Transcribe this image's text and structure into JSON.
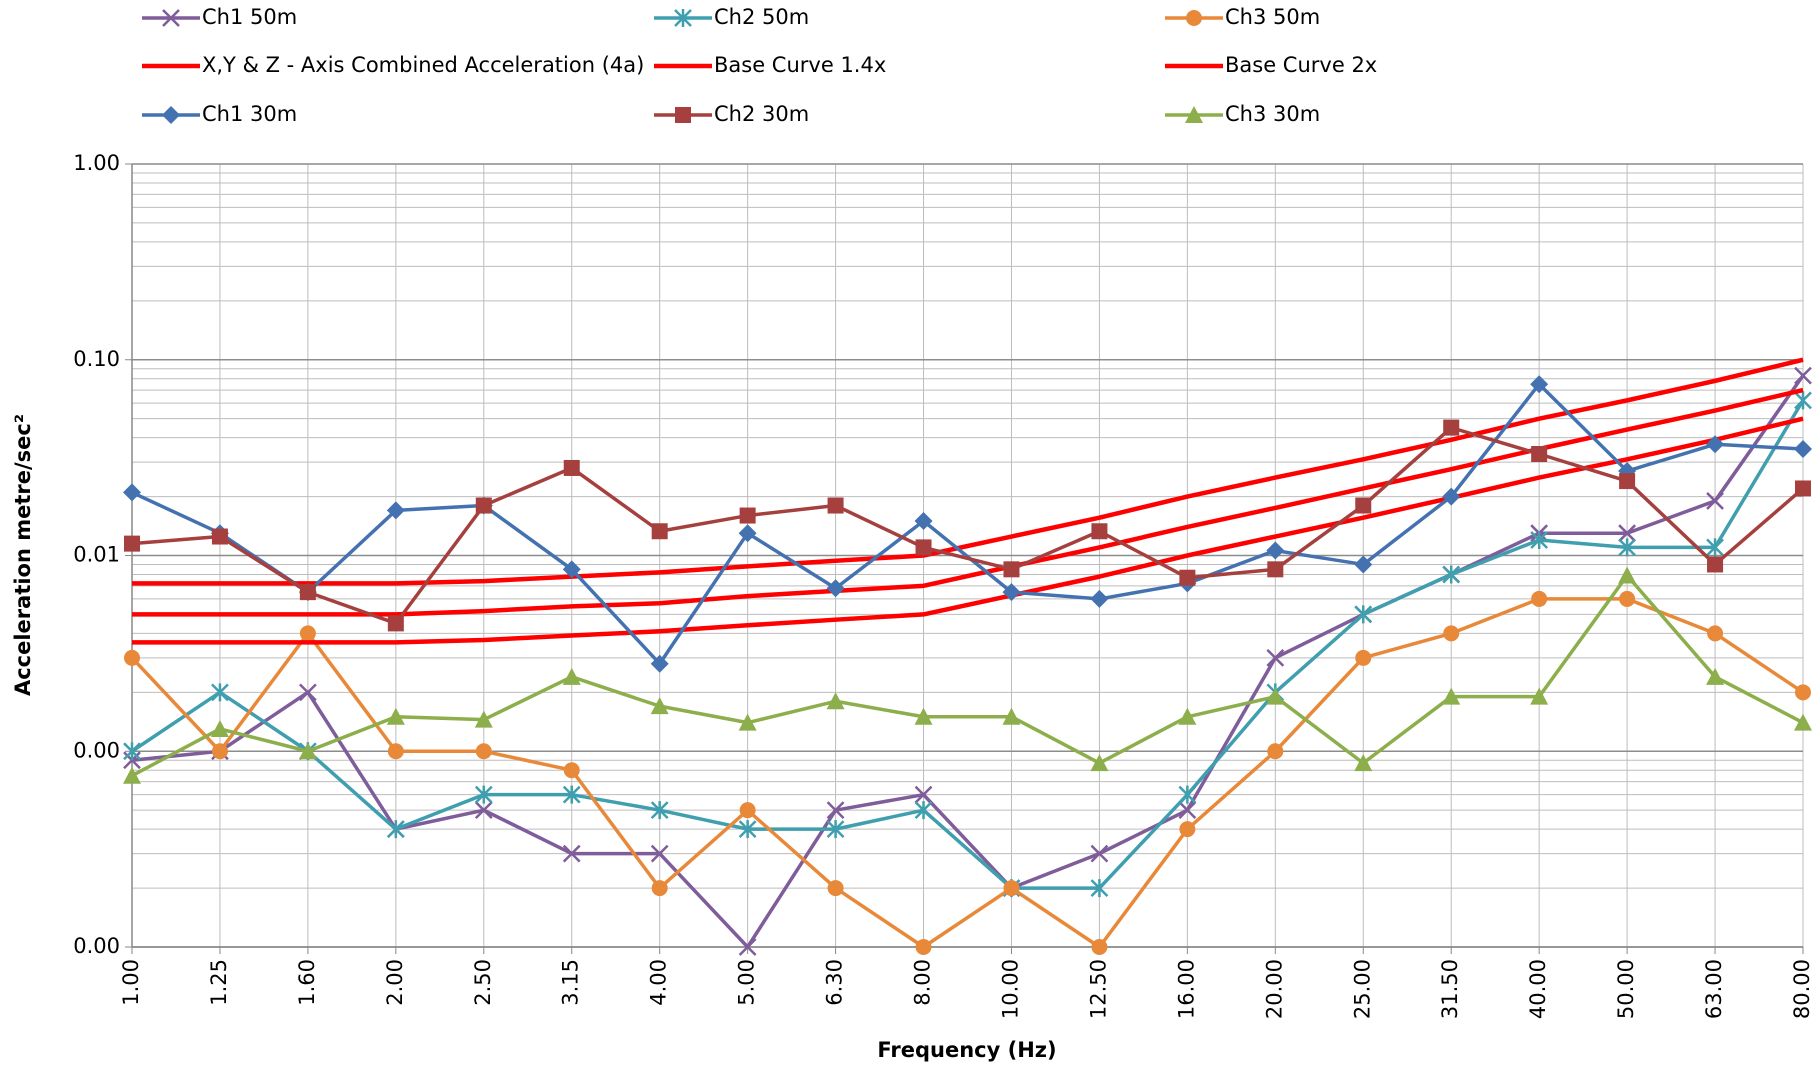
{
  "chart_data": {
    "type": "line",
    "xlabel": "Frequency (Hz)",
    "ylabel": "Acceleration metre/sec²",
    "categories": [
      "1.00",
      "1.25",
      "1.60",
      "2.00",
      "2.50",
      "3.15",
      "4.00",
      "5.00",
      "6.30",
      "8.00",
      "10.00",
      "12.50",
      "16.00",
      "20.00",
      "25.00",
      "31.50",
      "40.00",
      "50.00",
      "63.00",
      "80.00"
    ],
    "ylim": [
      0.0001,
      1
    ],
    "yticks": [
      {
        "value": 1,
        "label": "1.00"
      },
      {
        "value": 0.1,
        "label": "0.10"
      },
      {
        "value": 0.01,
        "label": "0.01"
      },
      {
        "value": 0.001,
        "label": "0.00"
      },
      {
        "value": 0.0001,
        "label": "0.00"
      }
    ],
    "log_y": true,
    "grid": true,
    "minor_grid": true,
    "legend": "top",
    "series": [
      {
        "name": "Ch1 50m",
        "color": "#7f5c9a",
        "marker": "x",
        "values": [
          0.0009,
          0.001,
          0.002,
          0.0004,
          0.0005,
          0.0003,
          0.0003,
          0.0001,
          0.0005,
          0.0006,
          0.0002,
          0.0003,
          0.0005,
          0.003,
          0.005,
          0.008,
          0.013,
          0.013,
          0.019,
          0.083
        ]
      },
      {
        "name": "Ch2 50m",
        "color": "#3f9faf",
        "marker": "star",
        "values": [
          0.001,
          0.002,
          0.001,
          0.0004,
          0.0006,
          0.0006,
          0.0005,
          0.0004,
          0.0004,
          0.0005,
          0.0002,
          0.0002,
          0.0006,
          0.002,
          0.005,
          0.008,
          0.012,
          0.011,
          0.011,
          0.062
        ]
      },
      {
        "name": "Ch3 50m",
        "color": "#e8893a",
        "marker": "circle",
        "values": [
          0.003,
          0.001,
          0.004,
          0.001,
          0.001,
          0.0008,
          0.0002,
          0.0005,
          0.0002,
          0.0001,
          0.0002,
          0.0001,
          0.0004,
          0.001,
          0.003,
          0.004,
          0.006,
          0.006,
          0.004,
          0.002
        ]
      },
      {
        "name": "X,Y & Z - Axis Combined Acceleration (4a)",
        "color": "#ff0000",
        "marker": "none",
        "values": [
          0.0036,
          0.0036,
          0.0036,
          0.0036,
          0.0037,
          0.0039,
          0.0041,
          0.0044,
          0.0047,
          0.005,
          0.00625,
          0.0078,
          0.01,
          0.0125,
          0.0156,
          0.0197,
          0.025,
          0.031,
          0.039,
          0.05
        ]
      },
      {
        "name": "Base Curve 1.4x",
        "color": "#ff0000",
        "marker": "none",
        "values": [
          0.005,
          0.005,
          0.005,
          0.005,
          0.0052,
          0.0055,
          0.0057,
          0.0062,
          0.0066,
          0.007,
          0.0088,
          0.011,
          0.014,
          0.0175,
          0.022,
          0.0276,
          0.035,
          0.044,
          0.055,
          0.07
        ]
      },
      {
        "name": "Base Curve 2x",
        "color": "#ff0000",
        "marker": "none",
        "values": [
          0.0072,
          0.0072,
          0.0072,
          0.0072,
          0.0074,
          0.0078,
          0.0082,
          0.0088,
          0.0094,
          0.01,
          0.0125,
          0.0156,
          0.02,
          0.025,
          0.031,
          0.039,
          0.05,
          0.062,
          0.078,
          0.1
        ]
      },
      {
        "name": "Ch1 30m",
        "color": "#4472b0",
        "marker": "diamond",
        "values": [
          0.021,
          0.013,
          0.0065,
          0.017,
          0.018,
          0.0085,
          0.0028,
          0.013,
          0.0068,
          0.015,
          0.0065,
          0.006,
          0.0072,
          0.0106,
          0.009,
          0.02,
          0.075,
          0.027,
          0.037,
          0.035
        ]
      },
      {
        "name": "Ch2 30m",
        "color": "#a5403e",
        "marker": "square",
        "values": [
          0.0115,
          0.0125,
          0.0065,
          0.0045,
          0.018,
          0.028,
          0.0133,
          0.016,
          0.018,
          0.011,
          0.0085,
          0.0133,
          0.0077,
          0.0085,
          0.018,
          0.045,
          0.033,
          0.024,
          0.009,
          0.022
        ]
      },
      {
        "name": "Ch3 30m",
        "color": "#8cae4b",
        "marker": "triangle",
        "values": [
          0.00075,
          0.0013,
          0.001,
          0.0015,
          0.00145,
          0.0024,
          0.0017,
          0.0014,
          0.0018,
          0.0015,
          0.0015,
          0.00087,
          0.0015,
          0.0019,
          0.00087,
          0.0019,
          0.0019,
          0.0079,
          0.0024,
          0.0014
        ]
      }
    ]
  }
}
